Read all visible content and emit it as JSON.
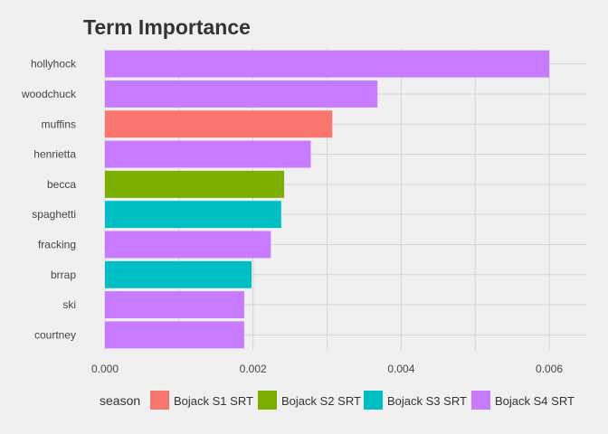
{
  "chart_data": {
    "type": "bar",
    "orientation": "horizontal",
    "title": "Term Importance",
    "xlabel": "",
    "ylabel": "",
    "xlim": [
      0,
      0.0065
    ],
    "x_ticks": [
      "0.000",
      "0.002",
      "0.004",
      "0.006"
    ],
    "x_tick_values": [
      0,
      0.002,
      0.004,
      0.006
    ],
    "grid": true,
    "legend": {
      "title": "season",
      "placement": "bottom",
      "entries": [
        {
          "label": "Bojack S1 SRT",
          "color": "#f8766d"
        },
        {
          "label": "Bojack S2 SRT",
          "color": "#7cae00"
        },
        {
          "label": "Bojack S3 SRT",
          "color": "#00bfc4"
        },
        {
          "label": "Bojack S4 SRT",
          "color": "#c77cff"
        }
      ]
    },
    "bars": [
      {
        "term": "hollyhock",
        "value": 0.006,
        "season": 3
      },
      {
        "term": "woodchuck",
        "value": 0.00368,
        "season": 3
      },
      {
        "term": "muffins",
        "value": 0.00307,
        "season": 0
      },
      {
        "term": "henrietta",
        "value": 0.00278,
        "season": 3
      },
      {
        "term": "becca",
        "value": 0.00242,
        "season": 1
      },
      {
        "term": "spaghetti",
        "value": 0.00238,
        "season": 2
      },
      {
        "term": "fracking",
        "value": 0.00224,
        "season": 3
      },
      {
        "term": "brrap",
        "value": 0.00198,
        "season": 2
      },
      {
        "term": "ski",
        "value": 0.00188,
        "season": 3
      },
      {
        "term": "courtney",
        "value": 0.00188,
        "season": 3
      }
    ]
  }
}
